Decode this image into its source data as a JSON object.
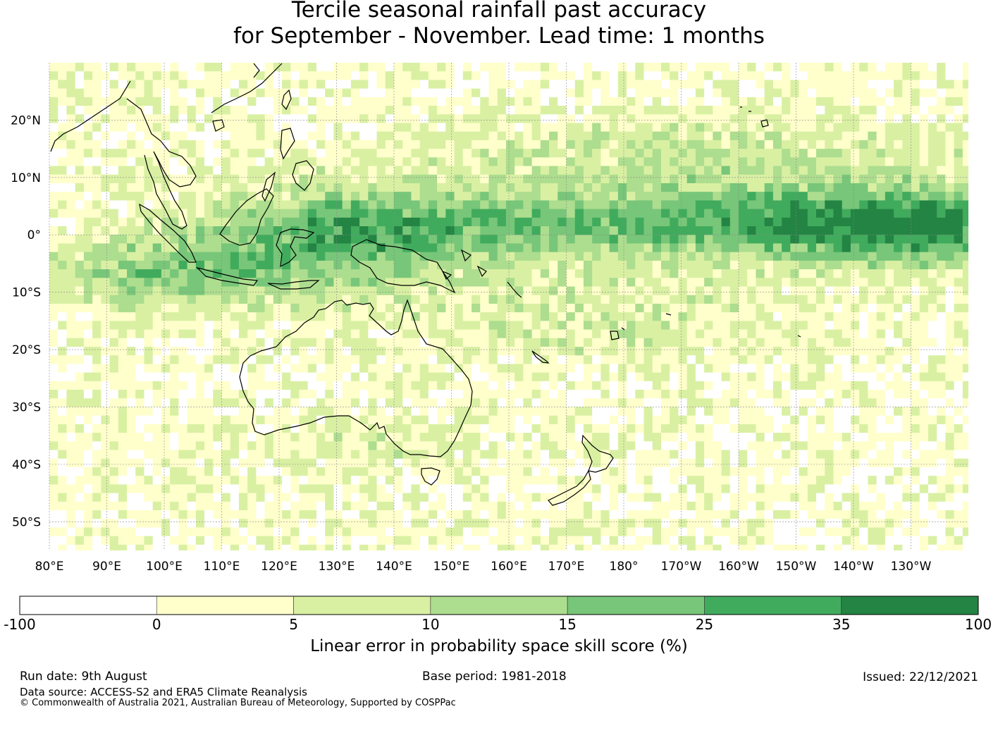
{
  "title_line1": "Tercile seasonal rainfall past accuracy",
  "title_line2": "for September - November. Lead time: 1 months",
  "map": {
    "lon_ticks": [
      "80°E",
      "90°E",
      "100°E",
      "110°E",
      "120°E",
      "130°E",
      "140°E",
      "150°E",
      "160°E",
      "170°E",
      "180°",
      "170°W",
      "160°W",
      "150°W",
      "140°W",
      "130°W"
    ],
    "lat_ticks": [
      "20°N",
      "10°N",
      "0°",
      "10°S",
      "20°S",
      "30°S",
      "40°S",
      "50°S"
    ],
    "lon_range": [
      80,
      240
    ],
    "lat_range": [
      -55,
      30
    ],
    "grid": true
  },
  "colorbar": {
    "title": "Linear error in probability space skill score (%)",
    "labels": [
      "-100",
      "0",
      "5",
      "10",
      "15",
      "25",
      "35",
      "100"
    ],
    "colors": [
      "#ffffff",
      "#ffffcc",
      "#d9f0a3",
      "#addd8e",
      "#78c679",
      "#41ab5d",
      "#238443"
    ]
  },
  "footer": {
    "run_date": "Run date: 9th August",
    "base_period": "Base period: 1981-2018",
    "issued": "Issued: 22/12/2021",
    "data_source": "Data source: ACCESS-S2 and ERA5 Climate Reanalysis",
    "copyright": "© Commonwealth of Australia 2021, Australian Bureau of Meteorology, Supported by COSPPac"
  }
}
